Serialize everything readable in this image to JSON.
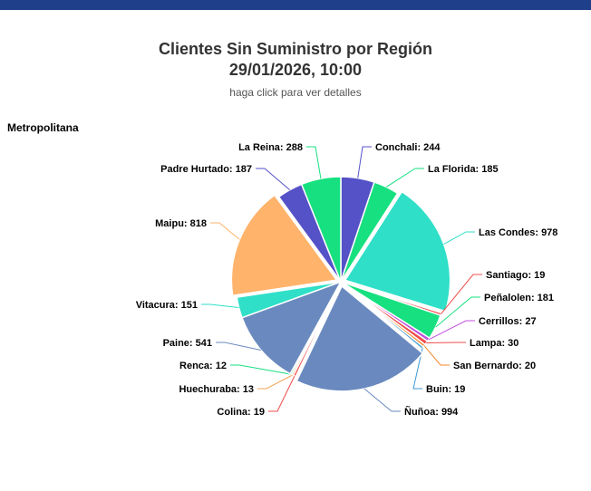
{
  "header": {
    "title_line1": "Clientes Sin Suministro por Región",
    "title_line2": "29/01/2026, 10:00",
    "subtitle": "haga click para ver detalles"
  },
  "section": {
    "label": "Metropolitana"
  },
  "colors": {
    "top_bar": "#1f3f8a"
  },
  "chart_data": {
    "type": "pie",
    "title": "Clientes Sin Suministro por Región",
    "subtitle": "haga click para ver detalles",
    "series": [
      {
        "name": "Metropolitana",
        "slices": [
          {
            "label": "Conchali",
            "value": 244,
            "color": "#5552c8"
          },
          {
            "label": "La Florida",
            "value": 185,
            "color": "#16e07f"
          },
          {
            "label": "Las Condes",
            "value": 978,
            "color": "#2fdfc8"
          },
          {
            "label": "Santiago",
            "value": 19,
            "color": "#f04c4c"
          },
          {
            "label": "Peñalolen",
            "value": 181,
            "color": "#16e07f"
          },
          {
            "label": "Cerrillos",
            "value": 27,
            "color": "#c050e0"
          },
          {
            "label": "Lampa",
            "value": 30,
            "color": "#f04c4c"
          },
          {
            "label": "San Bernardo",
            "value": 20,
            "color": "#f58a2c"
          },
          {
            "label": "Buin",
            "value": 19,
            "color": "#3c9ad6"
          },
          {
            "label": "Ñuñoa",
            "value": 994,
            "color": "#6a8abf"
          },
          {
            "label": "Colina",
            "value": 19,
            "color": "#f04c4c"
          },
          {
            "label": "Huechuraba",
            "value": 13,
            "color": "#f5a55a"
          },
          {
            "label": "Renca",
            "value": 12,
            "color": "#16e07f"
          },
          {
            "label": "Paine",
            "value": 541,
            "color": "#6a8abf"
          },
          {
            "label": "Vitacura",
            "value": 151,
            "color": "#2fdfc8"
          },
          {
            "label": "Maipu",
            "value": 818,
            "color": "#ffb36b"
          },
          {
            "label": "Padre Hurtado",
            "value": 187,
            "color": "#5552c8"
          },
          {
            "label": "La Reina",
            "value": 288,
            "color": "#16e07f"
          }
        ],
        "data_labels": [
          "Conchali: 244",
          "La Florida: 185",
          "Las Condes: 978",
          "Santiago: 19",
          "Peñalolen: 181",
          "Cerrillos: 27",
          "Lampa: 30",
          "San Bernardo: 20",
          "Buin: 19",
          "Ñuñoa: 994",
          "Colina: 19",
          "Huechuraba: 13",
          "Renca: 12",
          "Paine: 541",
          "Vitacura: 151",
          "Maipu: 818",
          "Padre Hurtado: 187",
          "La Reina: 288"
        ]
      }
    ]
  }
}
